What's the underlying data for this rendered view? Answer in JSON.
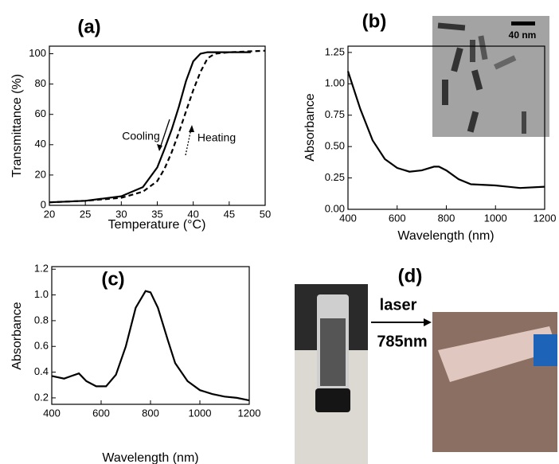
{
  "chart_data": [
    {
      "type": "line",
      "title": "(a)",
      "x_label": "Temperature (°C)",
      "y_label": "Transmittance (%)",
      "xlim": [
        20,
        50
      ],
      "ylim": [
        0,
        105
      ],
      "xticks": [
        20,
        25,
        30,
        35,
        40,
        45,
        50
      ],
      "yticks": [
        0,
        20,
        40,
        60,
        80,
        100
      ],
      "series": [
        {
          "name": "Cooling",
          "color": "#000000",
          "line_style": "solid",
          "x": [
            20,
            25,
            30,
            33,
            35,
            36,
            37,
            38,
            39,
            40,
            41,
            42,
            45,
            48
          ],
          "values": [
            2,
            3,
            6,
            12,
            25,
            37,
            50,
            65,
            82,
            95,
            100,
            101,
            101,
            101
          ]
        },
        {
          "name": "Heating",
          "color": "#000000",
          "line_style": "dashed",
          "x": [
            20,
            25,
            30,
            33,
            35,
            36,
            37,
            38,
            39,
            40,
            41,
            42,
            43,
            45,
            50
          ],
          "values": [
            2,
            3,
            5,
            9,
            16,
            24,
            35,
            48,
            62,
            76,
            88,
            97,
            100,
            101,
            102
          ]
        }
      ]
    },
    {
      "type": "line",
      "title": "(b)",
      "x_label": "Wavelength (nm)",
      "y_label": "Absorbance",
      "inset_scale": "40 nm",
      "xlim": [
        400,
        1200
      ],
      "ylim": [
        0,
        1.3
      ],
      "xticks": [
        400,
        600,
        800,
        1000,
        1200
      ],
      "yticks": [
        {
          "value": 0,
          "label": "0.00"
        },
        {
          "value": 0.25,
          "label": "0.25"
        },
        {
          "value": 0.5,
          "label": "0.50"
        },
        {
          "value": 0.75,
          "label": "0.75"
        },
        {
          "value": 1,
          "label": "1.00"
        },
        {
          "value": 1.25,
          "label": "1.25"
        }
      ],
      "series": [
        {
          "color": "#000000",
          "line_style": "solid",
          "x": [
            400,
            450,
            500,
            550,
            600,
            650,
            700,
            750,
            770,
            800,
            850,
            900,
            1000,
            1100,
            1200
          ],
          "values": [
            1.1,
            0.8,
            0.55,
            0.4,
            0.33,
            0.3,
            0.31,
            0.34,
            0.34,
            0.31,
            0.24,
            0.2,
            0.19,
            0.17,
            0.18
          ]
        }
      ]
    },
    {
      "type": "line",
      "title": "(c)",
      "x_label": "Wavelength (nm)",
      "y_label": "Absorbance",
      "xlim": [
        400,
        1200
      ],
      "ylim": [
        0.15,
        1.22
      ],
      "xticks": [
        400,
        600,
        800,
        1000,
        1200
      ],
      "yticks": [
        0.2,
        0.4,
        0.6,
        0.8,
        {
          "value": 1,
          "label": "1.0"
        },
        1.2
      ],
      "series": [
        {
          "color": "#000000",
          "line_style": "solid",
          "x": [
            400,
            450,
            480,
            510,
            540,
            580,
            620,
            660,
            700,
            740,
            780,
            800,
            830,
            870,
            900,
            950,
            1000,
            1050,
            1100,
            1150,
            1200
          ],
          "values": [
            0.37,
            0.35,
            0.37,
            0.39,
            0.33,
            0.29,
            0.29,
            0.38,
            0.6,
            0.9,
            1.03,
            1.02,
            0.9,
            0.65,
            0.47,
            0.33,
            0.26,
            0.23,
            0.21,
            0.2,
            0.18
          ]
        }
      ]
    }
  ],
  "panel_d": {
    "label": "(d)",
    "arrow_top": "laser",
    "arrow_bottom": "785nm"
  }
}
